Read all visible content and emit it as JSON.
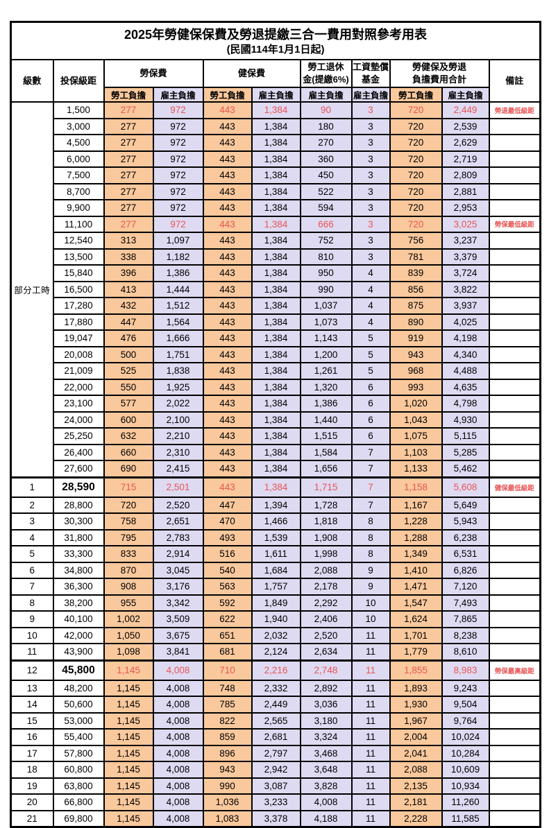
{
  "title": "2025年勞健保保費及勞退提繳三合一費用對照參考用表",
  "subtitle": "(民國114年1月1日起)",
  "colors": {
    "employee_column_bg": "#f9c89c",
    "employer_column_bg": "#dedaf2",
    "highlight_text": "#e85555",
    "grid": "#000000"
  },
  "header": {
    "level": "級數",
    "bracket": "投保級距",
    "labor_ins": "勞保費",
    "health_ins": "健保費",
    "pension_line1": "勞工退休",
    "pension_line2": "金(提繳6%)",
    "wage_fund_line1": "工資墊償",
    "wage_fund_line2": "基金",
    "total_line1": "勞健保及勞退",
    "total_line2": "負擔費用合計",
    "remark": "備註",
    "employee": "勞工負擔",
    "employer": "雇主負擔"
  },
  "table": {
    "part_time_label": "部分工時",
    "part_time_rowspan": 23,
    "rows": [
      {
        "lv": "",
        "bracket": "1,500",
        "values": [
          "277",
          "972",
          "443",
          "1,384",
          "90",
          "3",
          "720",
          "2,449"
        ],
        "remark": "勞退最低級距",
        "red": true
      },
      {
        "lv": "",
        "bracket": "3,000",
        "values": [
          "277",
          "972",
          "443",
          "1,384",
          "180",
          "3",
          "720",
          "2,539"
        ],
        "remark": ""
      },
      {
        "lv": "",
        "bracket": "4,500",
        "values": [
          "277",
          "972",
          "443",
          "1,384",
          "270",
          "3",
          "720",
          "2,629"
        ],
        "remark": ""
      },
      {
        "lv": "",
        "bracket": "6,000",
        "values": [
          "277",
          "972",
          "443",
          "1,384",
          "360",
          "3",
          "720",
          "2,719"
        ],
        "remark": ""
      },
      {
        "lv": "",
        "bracket": "7,500",
        "values": [
          "277",
          "972",
          "443",
          "1,384",
          "450",
          "3",
          "720",
          "2,809"
        ],
        "remark": ""
      },
      {
        "lv": "",
        "bracket": "8,700",
        "values": [
          "277",
          "972",
          "443",
          "1,384",
          "522",
          "3",
          "720",
          "2,881"
        ],
        "remark": ""
      },
      {
        "lv": "",
        "bracket": "9,900",
        "values": [
          "277",
          "972",
          "443",
          "1,384",
          "594",
          "3",
          "720",
          "2,953"
        ],
        "remark": ""
      },
      {
        "lv": "",
        "bracket": "11,100",
        "values": [
          "277",
          "972",
          "443",
          "1,384",
          "666",
          "3",
          "720",
          "3,025"
        ],
        "remark": "勞保最低級距",
        "red": true
      },
      {
        "lv": "",
        "bracket": "12,540",
        "values": [
          "313",
          "1,097",
          "443",
          "1,384",
          "752",
          "3",
          "756",
          "3,237"
        ],
        "remark": ""
      },
      {
        "lv": "",
        "bracket": "13,500",
        "values": [
          "338",
          "1,182",
          "443",
          "1,384",
          "810",
          "3",
          "781",
          "3,379"
        ],
        "remark": ""
      },
      {
        "lv": "",
        "bracket": "15,840",
        "values": [
          "396",
          "1,386",
          "443",
          "1,384",
          "950",
          "4",
          "839",
          "3,724"
        ],
        "remark": ""
      },
      {
        "lv": "",
        "bracket": "16,500",
        "values": [
          "413",
          "1,444",
          "443",
          "1,384",
          "990",
          "4",
          "856",
          "3,822"
        ],
        "remark": ""
      },
      {
        "lv": "",
        "bracket": "17,280",
        "values": [
          "432",
          "1,512",
          "443",
          "1,384",
          "1,037",
          "4",
          "875",
          "3,937"
        ],
        "remark": ""
      },
      {
        "lv": "",
        "bracket": "17,880",
        "values": [
          "447",
          "1,564",
          "443",
          "1,384",
          "1,073",
          "4",
          "890",
          "4,025"
        ],
        "remark": ""
      },
      {
        "lv": "",
        "bracket": "19,047",
        "values": [
          "476",
          "1,666",
          "443",
          "1,384",
          "1,143",
          "5",
          "919",
          "4,198"
        ],
        "remark": ""
      },
      {
        "lv": "",
        "bracket": "20,008",
        "values": [
          "500",
          "1,751",
          "443",
          "1,384",
          "1,200",
          "5",
          "943",
          "4,340"
        ],
        "remark": ""
      },
      {
        "lv": "",
        "bracket": "21,009",
        "values": [
          "525",
          "1,838",
          "443",
          "1,384",
          "1,261",
          "5",
          "968",
          "4,488"
        ],
        "remark": ""
      },
      {
        "lv": "",
        "bracket": "22,000",
        "values": [
          "550",
          "1,925",
          "443",
          "1,384",
          "1,320",
          "6",
          "993",
          "4,635"
        ],
        "remark": ""
      },
      {
        "lv": "",
        "bracket": "23,100",
        "values": [
          "577",
          "2,022",
          "443",
          "1,384",
          "1,386",
          "6",
          "1,020",
          "4,798"
        ],
        "remark": ""
      },
      {
        "lv": "",
        "bracket": "24,000",
        "values": [
          "600",
          "2,100",
          "443",
          "1,384",
          "1,440",
          "6",
          "1,043",
          "4,930"
        ],
        "remark": ""
      },
      {
        "lv": "",
        "bracket": "25,250",
        "values": [
          "632",
          "2,210",
          "443",
          "1,384",
          "1,515",
          "6",
          "1,075",
          "5,115"
        ],
        "remark": ""
      },
      {
        "lv": "",
        "bracket": "26,400",
        "values": [
          "660",
          "2,310",
          "443",
          "1,384",
          "1,584",
          "7",
          "1,103",
          "5,285"
        ],
        "remark": ""
      },
      {
        "lv": "",
        "bracket": "27,600",
        "values": [
          "690",
          "2,415",
          "443",
          "1,384",
          "1,656",
          "7",
          "1,133",
          "5,462"
        ],
        "remark": ""
      },
      {
        "lv": "1",
        "bracket": "28,590",
        "values": [
          "715",
          "2,501",
          "443",
          "1,384",
          "1,715",
          "7",
          "1,158",
          "5,608"
        ],
        "remark": "健保最低級距",
        "red": true,
        "key": true
      },
      {
        "lv": "2",
        "bracket": "28,800",
        "values": [
          "720",
          "2,520",
          "447",
          "1,394",
          "1,728",
          "7",
          "1,167",
          "5,649"
        ],
        "remark": ""
      },
      {
        "lv": "3",
        "bracket": "30,300",
        "values": [
          "758",
          "2,651",
          "470",
          "1,466",
          "1,818",
          "8",
          "1,228",
          "5,943"
        ],
        "remark": ""
      },
      {
        "lv": "4",
        "bracket": "31,800",
        "values": [
          "795",
          "2,783",
          "493",
          "1,539",
          "1,908",
          "8",
          "1,288",
          "6,238"
        ],
        "remark": ""
      },
      {
        "lv": "5",
        "bracket": "33,300",
        "values": [
          "833",
          "2,914",
          "516",
          "1,611",
          "1,998",
          "8",
          "1,349",
          "6,531"
        ],
        "remark": ""
      },
      {
        "lv": "6",
        "bracket": "34,800",
        "values": [
          "870",
          "3,045",
          "540",
          "1,684",
          "2,088",
          "9",
          "1,410",
          "6,826"
        ],
        "remark": ""
      },
      {
        "lv": "7",
        "bracket": "36,300",
        "values": [
          "908",
          "3,176",
          "563",
          "1,757",
          "2,178",
          "9",
          "1,471",
          "7,120"
        ],
        "remark": ""
      },
      {
        "lv": "8",
        "bracket": "38,200",
        "values": [
          "955",
          "3,342",
          "592",
          "1,849",
          "2,292",
          "10",
          "1,547",
          "7,493"
        ],
        "remark": ""
      },
      {
        "lv": "9",
        "bracket": "40,100",
        "values": [
          "1,002",
          "3,509",
          "622",
          "1,940",
          "2,406",
          "10",
          "1,624",
          "7,865"
        ],
        "remark": ""
      },
      {
        "lv": "10",
        "bracket": "42,000",
        "values": [
          "1,050",
          "3,675",
          "651",
          "2,032",
          "2,520",
          "11",
          "1,701",
          "8,238"
        ],
        "remark": ""
      },
      {
        "lv": "11",
        "bracket": "43,900",
        "values": [
          "1,098",
          "3,841",
          "681",
          "2,124",
          "2,634",
          "11",
          "1,779",
          "8,610"
        ],
        "remark": ""
      },
      {
        "lv": "12",
        "bracket": "45,800",
        "values": [
          "1,145",
          "4,008",
          "710",
          "2,216",
          "2,748",
          "11",
          "1,855",
          "8,983"
        ],
        "remark": "勞保最高級距",
        "red": true,
        "key": true
      },
      {
        "lv": "13",
        "bracket": "48,200",
        "values": [
          "1,145",
          "4,008",
          "748",
          "2,332",
          "2,892",
          "11",
          "1,893",
          "9,243"
        ],
        "remark": ""
      },
      {
        "lv": "14",
        "bracket": "50,600",
        "values": [
          "1,145",
          "4,008",
          "785",
          "2,449",
          "3,036",
          "11",
          "1,930",
          "9,504"
        ],
        "remark": ""
      },
      {
        "lv": "15",
        "bracket": "53,000",
        "values": [
          "1,145",
          "4,008",
          "822",
          "2,565",
          "3,180",
          "11",
          "1,967",
          "9,764"
        ],
        "remark": ""
      },
      {
        "lv": "16",
        "bracket": "55,400",
        "values": [
          "1,145",
          "4,008",
          "859",
          "2,681",
          "3,324",
          "11",
          "2,004",
          "10,024"
        ],
        "remark": ""
      },
      {
        "lv": "17",
        "bracket": "57,800",
        "values": [
          "1,145",
          "4,008",
          "896",
          "2,797",
          "3,468",
          "11",
          "2,041",
          "10,284"
        ],
        "remark": ""
      },
      {
        "lv": "18",
        "bracket": "60,800",
        "values": [
          "1,145",
          "4,008",
          "943",
          "2,942",
          "3,648",
          "11",
          "2,088",
          "10,609"
        ],
        "remark": ""
      },
      {
        "lv": "19",
        "bracket": "63,800",
        "values": [
          "1,145",
          "4,008",
          "990",
          "3,087",
          "3,828",
          "11",
          "2,135",
          "10,934"
        ],
        "remark": ""
      },
      {
        "lv": "20",
        "bracket": "66,800",
        "values": [
          "1,145",
          "4,008",
          "1,036",
          "3,233",
          "4,008",
          "11",
          "2,181",
          "11,260"
        ],
        "remark": ""
      },
      {
        "lv": "21",
        "bracket": "69,800",
        "values": [
          "1,145",
          "4,008",
          "1,083",
          "3,378",
          "4,188",
          "11",
          "2,228",
          "11,585"
        ],
        "remark": ""
      }
    ]
  }
}
